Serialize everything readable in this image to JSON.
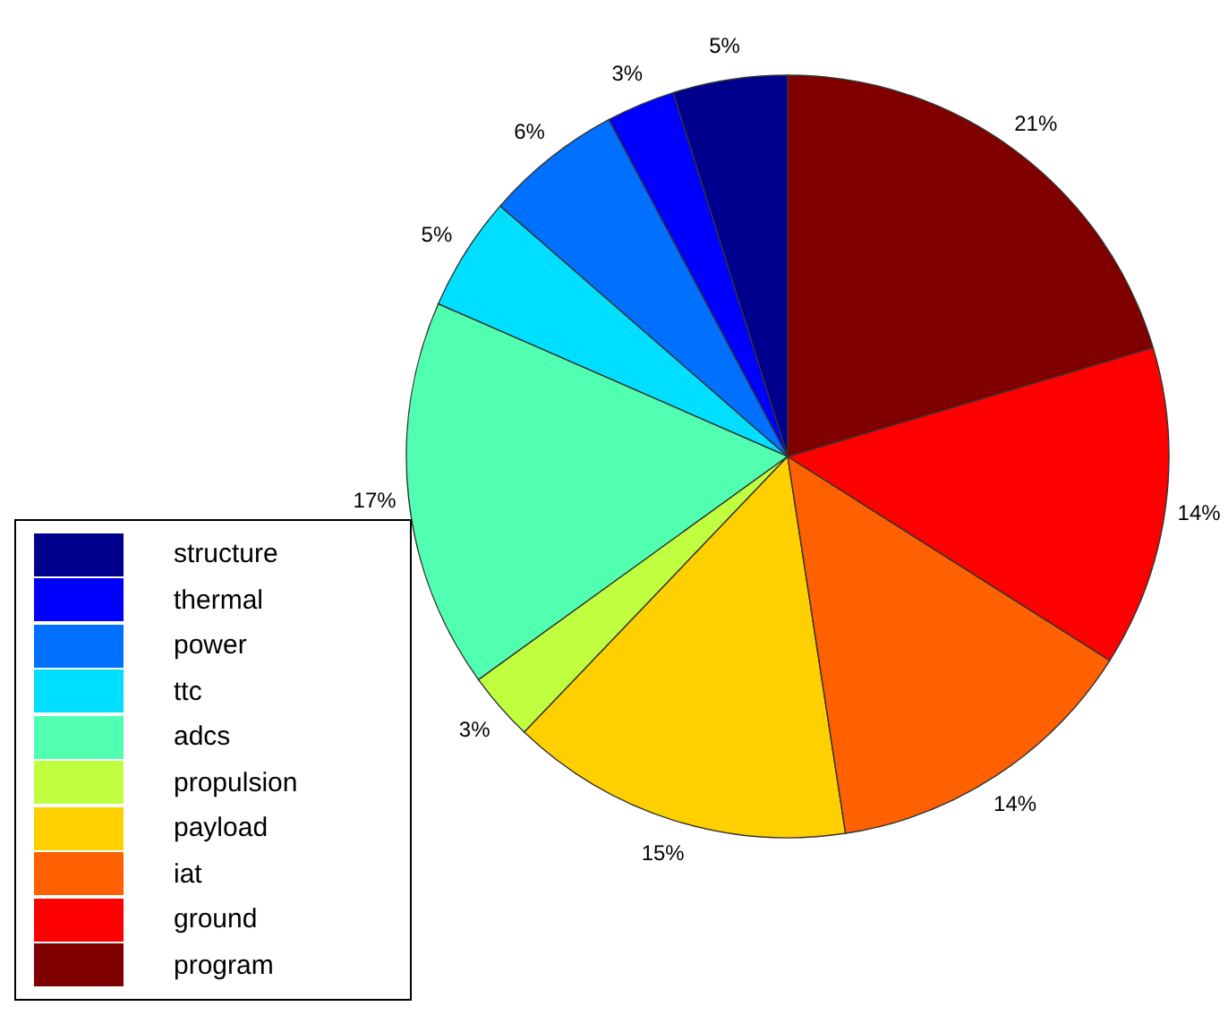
{
  "chart_data": {
    "type": "pie",
    "categories": [
      "structure",
      "thermal",
      "power",
      "ttc",
      "adcs",
      "propulsion",
      "payload",
      "iat",
      "ground",
      "program"
    ],
    "values": [
      5,
      3,
      6,
      5,
      17,
      3,
      15,
      14,
      14,
      21
    ],
    "value_labels": [
      "5%",
      "3%",
      "6%",
      "5%",
      "17%",
      "3%",
      "15%",
      "14%",
      "14%",
      "21%"
    ],
    "colors": [
      "#00008f",
      "#0000ff",
      "#0070ff",
      "#00dfff",
      "#50ffaf",
      "#bfff40",
      "#ffd000",
      "#ff6000",
      "#ff0000",
      "#800000"
    ],
    "legend": "bottom left"
  }
}
